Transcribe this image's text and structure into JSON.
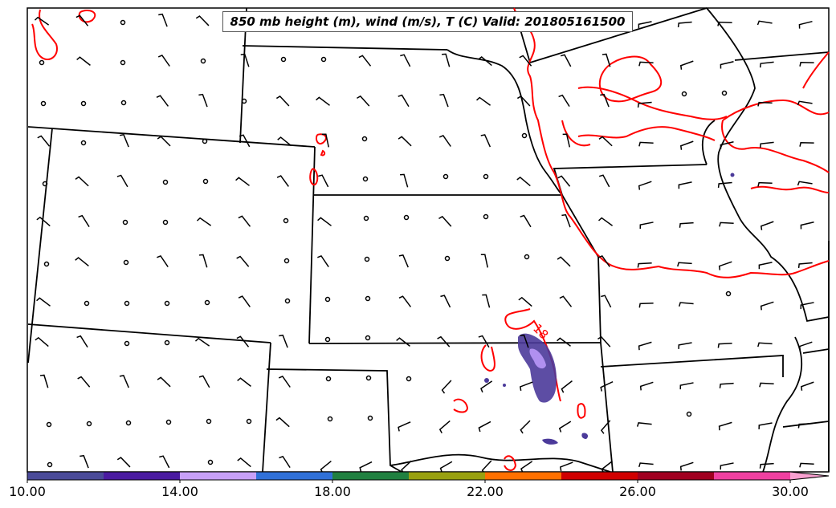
{
  "title": "850 mb height (m), wind (m/s), T (C) Valid: 201805161500",
  "contour_label": "18",
  "colorbar": {
    "tick_labels": [
      "10.00",
      "14.00",
      "18.00",
      "22.00",
      "26.00",
      "30.00"
    ],
    "colors": [
      "#4a4a98",
      "#4a1aa0",
      "#c8a0f8",
      "#3070d8",
      "#208040",
      "#98a010",
      "#ff7000",
      "#d00000",
      "#a00020",
      "#f040a0",
      "#f8a0d0"
    ]
  },
  "colors": {
    "isotherm": "#ff0000",
    "borders": "#000000",
    "precip_dark": "#4b3a9a",
    "precip_light": "#b090f0"
  }
}
